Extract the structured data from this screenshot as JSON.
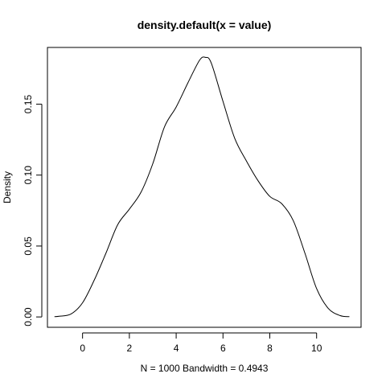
{
  "chart_data": {
    "type": "line",
    "title": "density.default(x = value)",
    "xlabel": "N = 1000   Bandwidth = 0.4943",
    "ylabel": "Density",
    "xlim": [
      -1.5,
      11.9
    ],
    "ylim": [
      -0.0073,
      0.19
    ],
    "x_ticks": [
      0,
      2,
      4,
      6,
      8,
      10
    ],
    "x_tick_labels": [
      "0",
      "2",
      "4",
      "6",
      "8",
      "10"
    ],
    "y_ticks": [
      0.0,
      0.05,
      0.1,
      0.15
    ],
    "y_tick_labels": [
      "0.00",
      "0.05",
      "0.10",
      "0.15"
    ],
    "grid": false,
    "legend": "none",
    "line_color": "#000000",
    "series": [
      {
        "x": [
          -1.2,
          -1.0,
          -0.5,
          0.0,
          0.5,
          1.0,
          1.5,
          2.0,
          2.5,
          3.0,
          3.5,
          4.0,
          4.5,
          5.0,
          5.25,
          5.5,
          6.0,
          6.5,
          7.0,
          7.5,
          8.0,
          8.5,
          9.0,
          9.5,
          10.0,
          10.5,
          11.0,
          11.4
        ],
        "y": [
          0.0002,
          0.0005,
          0.002,
          0.01,
          0.026,
          0.045,
          0.065,
          0.076,
          0.088,
          0.108,
          0.134,
          0.148,
          0.165,
          0.181,
          0.183,
          0.179,
          0.152,
          0.126,
          0.11,
          0.096,
          0.085,
          0.08,
          0.068,
          0.045,
          0.02,
          0.006,
          0.001,
          0.0002
        ]
      }
    ]
  }
}
